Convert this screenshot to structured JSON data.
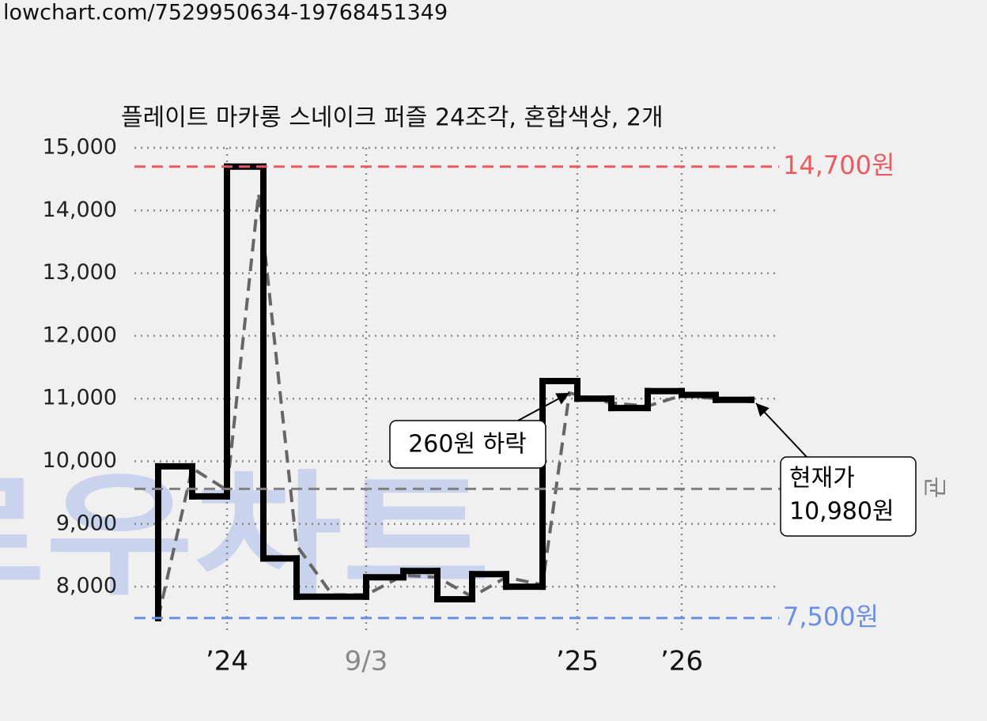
{
  "url": "lowchart.com/7529950634-19768451349",
  "chart_data": {
    "type": "line",
    "title": "플레이트 마카롱 스네이크 퍼즐 24조각, 혼합색상, 2개",
    "watermark": "로우차트",
    "xlim": [
      0,
      815
    ],
    "xticks": [
      {
        "value": 117,
        "label": "’24"
      },
      {
        "value": 293,
        "label": "9/3"
      },
      {
        "value": 560,
        "label": "’25"
      },
      {
        "value": 692,
        "label": "’26"
      }
    ],
    "xtick_colors": [
      "#111111",
      "#888888",
      "#111111",
      "#111111"
    ],
    "ylim": [
      7270,
      15000
    ],
    "yticks": [
      {
        "value": 8000,
        "label": "8,000"
      },
      {
        "value": 9000,
        "label": "9,000"
      },
      {
        "value": 10000,
        "label": "10,000"
      },
      {
        "value": 11000,
        "label": "11,000"
      },
      {
        "value": 12000,
        "label": "12,000"
      },
      {
        "value": 13000,
        "label": "13,000"
      },
      {
        "value": 14000,
        "label": "14,000"
      },
      {
        "value": 15000,
        "label": "15,000"
      }
    ],
    "grid": true,
    "series": [
      {
        "color": "#000000",
        "step": "post",
        "x": [
          30,
          30,
          73,
          117,
          163,
          205,
          293,
          340,
          383,
          427,
          470,
          516,
          560,
          603,
          649,
          692,
          735,
          780
        ],
        "values": [
          7500,
          9920,
          9440,
          14700,
          8450,
          7840,
          8150,
          8250,
          7800,
          8200,
          8000,
          11280,
          11000,
          10850,
          11120,
          11060,
          10980,
          10980
        ]
      },
      {
        "color": "#666666",
        "dashed": true,
        "x": [
          30,
          73,
          117,
          157,
          205,
          250,
          293,
          340,
          383,
          427,
          470,
          516,
          550,
          603,
          649,
          692,
          735,
          780
        ],
        "values": [
          7500,
          9890,
          9540,
          14270,
          8660,
          7870,
          7870,
          8180,
          8150,
          7840,
          8150,
          8030,
          11090,
          10930,
          10880,
          11050,
          11000,
          10990
        ]
      }
    ],
    "reference_lines": [
      {
        "value": 14700,
        "label": "14,700원",
        "color": "#ec5a5f"
      },
      {
        "value": 7500,
        "label": "7,500원",
        "color": "#6b8fe8"
      },
      {
        "value": 9560,
        "label": "균",
        "color": "#808080"
      }
    ],
    "annotations": [
      {
        "text": "260원 하락"
      },
      {
        "lines": [
          "현재가",
          "10,980원"
        ]
      }
    ]
  }
}
